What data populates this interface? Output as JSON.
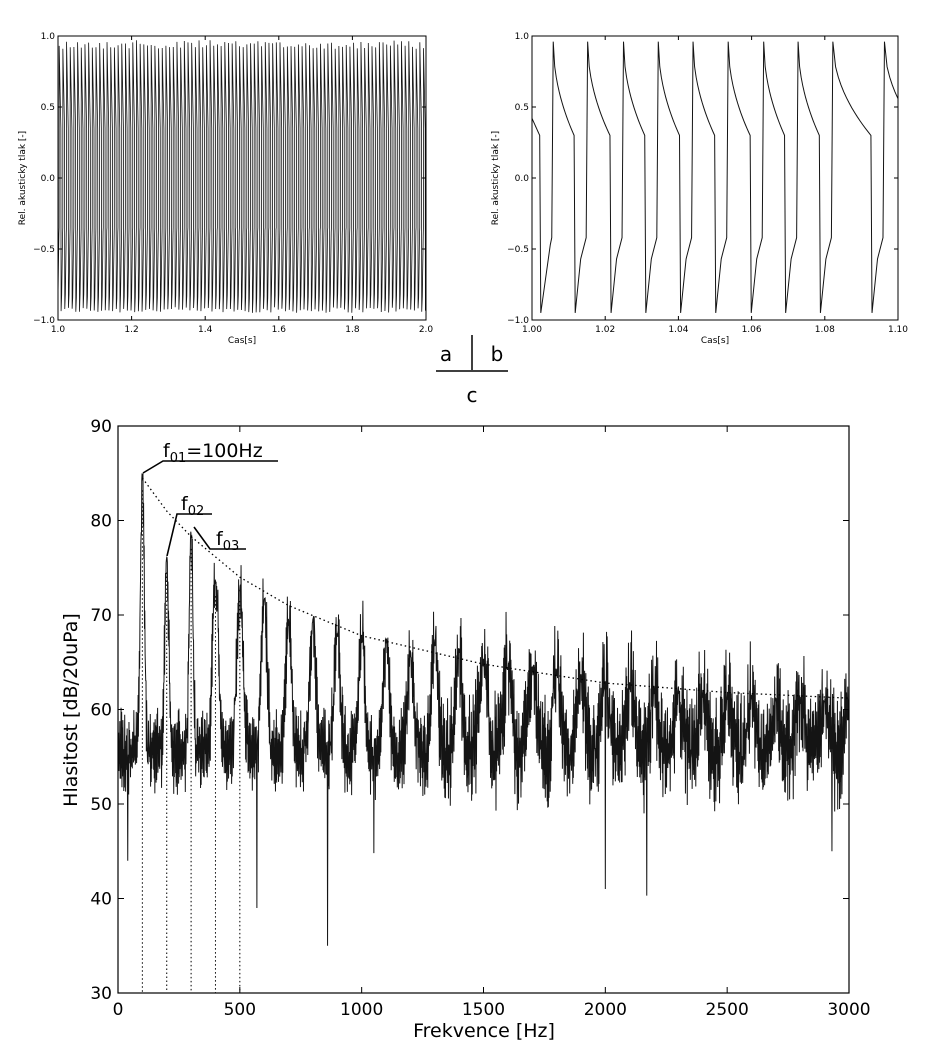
{
  "colors": {
    "line": "#141414",
    "axes": "#000000",
    "background": "#ffffff"
  },
  "layout_labels": {
    "a": "a",
    "b": "b",
    "c": "c"
  },
  "chart_data": [
    {
      "id": "a",
      "type": "line",
      "xlabel": "Cas[s]",
      "ylabel": "Rel. akusticky tlak [-]",
      "xlim": [
        1.0,
        2.0
      ],
      "ylim": [
        -1.0,
        1.0
      ],
      "xticks": [
        1.0,
        1.2,
        1.4,
        1.6,
        1.8,
        2.0
      ],
      "xtick_labels": [
        "1.0",
        "1.2",
        "1.4",
        "1.6",
        "1.8",
        "2.0"
      ],
      "yticks": [
        -1.0,
        -0.5,
        0.0,
        0.5,
        1.0
      ],
      "ytick_labels": [
        "−1.0",
        "−0.5",
        "0.0",
        "0.5",
        "1.0"
      ],
      "signal": {
        "shape": "sawtooth",
        "frequency_hz": 100,
        "min": -0.95,
        "max": 0.97,
        "shelf_level": -0.4
      }
    },
    {
      "id": "b",
      "type": "line",
      "xlabel": "Cas[s]",
      "ylabel": "Rel. akusticky tlak [-]",
      "xlim": [
        1.0,
        1.1
      ],
      "ylim": [
        -1.0,
        1.0
      ],
      "xticks": [
        1.0,
        1.02,
        1.04,
        1.06,
        1.08,
        1.1
      ],
      "xtick_labels": [
        "1.00",
        "1.02",
        "1.04",
        "1.06",
        "1.08",
        "1.10"
      ],
      "yticks": [
        -1.0,
        -0.5,
        0.0,
        0.5,
        1.0
      ],
      "ytick_labels": [
        "−1.0",
        "−0.5",
        "0.0",
        "0.5",
        "1.0"
      ],
      "signal": {
        "shape": "sawtooth",
        "frequency_hz": 100,
        "rise_times": [
          1.0058,
          1.0152,
          1.025,
          1.0345,
          1.044,
          1.0536,
          1.0633,
          1.0727,
          1.0822,
          1.0963
        ],
        "peak": 0.96,
        "pre_drop": 0.3,
        "trough": -0.95,
        "shelf": -0.42
      }
    },
    {
      "id": "c",
      "type": "line",
      "xlabel": "Frekvence [Hz]",
      "ylabel": "Hlasitost [dB/20uPa]",
      "xlim": [
        0,
        3000
      ],
      "ylim": [
        30,
        90
      ],
      "xticks": [
        0,
        500,
        1000,
        1500,
        2000,
        2500,
        3000
      ],
      "xtick_labels": [
        "0",
        "500",
        "1000",
        "1500",
        "2000",
        "2500",
        "3000"
      ],
      "yticks": [
        30,
        40,
        50,
        60,
        70,
        80,
        90
      ],
      "ytick_labels": [
        "30",
        "40",
        "50",
        "60",
        "70",
        "80",
        "90"
      ],
      "harmonic_peaks": [
        {
          "f": 100,
          "db": 85.2
        },
        {
          "f": 200,
          "db": 76.5
        },
        {
          "f": 300,
          "db": 79.0
        },
        {
          "f": 400,
          "db": 74.0
        },
        {
          "f": 500,
          "db": 73.5
        },
        {
          "f": 600,
          "db": 71.8
        },
        {
          "f": 700,
          "db": 69.6
        },
        {
          "f": 800,
          "db": 70.0
        },
        {
          "f": 900,
          "db": 68.4
        },
        {
          "f": 1000,
          "db": 68.0
        },
        {
          "f": 1100,
          "db": 67.6
        },
        {
          "f": 1200,
          "db": 66.4
        },
        {
          "f": 1300,
          "db": 67.5
        },
        {
          "f": 1400,
          "db": 66.6
        },
        {
          "f": 1500,
          "db": 65.4
        },
        {
          "f": 1600,
          "db": 65.0
        },
        {
          "f": 1700,
          "db": 64.6
        },
        {
          "f": 1800,
          "db": 64.5
        },
        {
          "f": 1900,
          "db": 63.8
        },
        {
          "f": 2000,
          "db": 63.2
        },
        {
          "f": 2100,
          "db": 63.0
        },
        {
          "f": 2200,
          "db": 62.6
        },
        {
          "f": 2300,
          "db": 62.5
        },
        {
          "f": 2400,
          "db": 62.2
        },
        {
          "f": 2500,
          "db": 62.0
        },
        {
          "f": 2600,
          "db": 61.8
        },
        {
          "f": 2700,
          "db": 61.6
        },
        {
          "f": 2800,
          "db": 61.5
        },
        {
          "f": 2900,
          "db": 61.3
        },
        {
          "f": 3000,
          "db": 61.2
        }
      ],
      "envelope": [
        {
          "f": 100,
          "db": 84.5
        },
        {
          "f": 200,
          "db": 81.0
        },
        {
          "f": 300,
          "db": 78.3
        },
        {
          "f": 500,
          "db": 74.0
        },
        {
          "f": 700,
          "db": 71.0
        },
        {
          "f": 1000,
          "db": 67.8
        },
        {
          "f": 1500,
          "db": 64.8
        },
        {
          "f": 2000,
          "db": 62.8
        },
        {
          "f": 2500,
          "db": 61.8
        },
        {
          "f": 3000,
          "db": 61.2
        }
      ],
      "noise_floor_db": 55.5,
      "dips": [
        {
          "f": 40,
          "db": 44.0
        },
        {
          "f": 570,
          "db": 39.0
        },
        {
          "f": 860,
          "db": 35.0
        },
        {
          "f": 2000,
          "db": 41.0
        },
        {
          "f": 2170,
          "db": 40.3
        },
        {
          "f": 1050,
          "db": 44.8
        },
        {
          "f": 2930,
          "db": 45.0
        }
      ],
      "harmonic_markers_hz": [
        100,
        200,
        300,
        400,
        500
      ],
      "annotations": [
        {
          "id": "f01",
          "base": "f",
          "sub": "01",
          "suffix": "=100Hz",
          "f": 100,
          "db": 85.2
        },
        {
          "id": "f02",
          "base": "f",
          "sub": "02",
          "suffix": "",
          "f": 200,
          "db": 76.5
        },
        {
          "id": "f03",
          "base": "f",
          "sub": "03",
          "suffix": "",
          "f": 300,
          "db": 79.0
        }
      ]
    }
  ]
}
